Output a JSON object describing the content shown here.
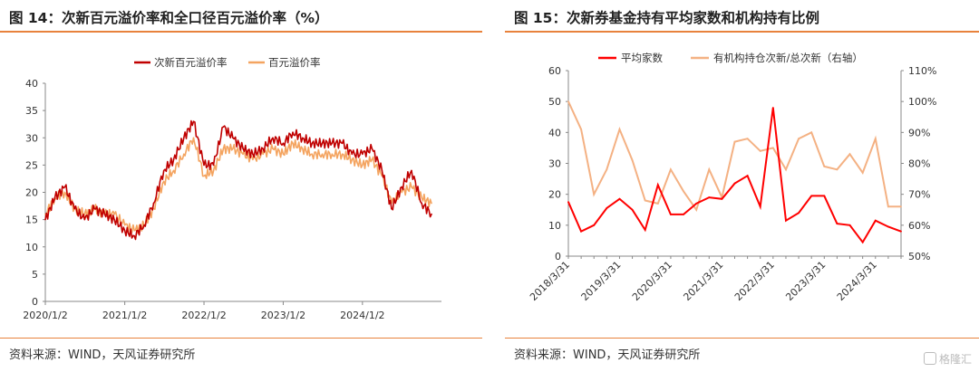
{
  "left": {
    "title": "图 14：次新百元溢价率和全口径百元溢价率（%）",
    "source": "资料来源：WIND，天风证券研究所"
  },
  "right": {
    "title": "图 15：次新券基金持有平均家数和机构持有比例",
    "source": "资料来源：WIND，天风证券研究所"
  },
  "watermark": "格隆汇",
  "chart_data": [
    {
      "type": "line",
      "x_tick_labels": [
        "2020/1/2",
        "2021/1/2",
        "2022/1/2",
        "2023/1/2",
        "2024/1/2"
      ],
      "ylim": [
        0,
        40
      ],
      "y_ticks": [
        0,
        5,
        10,
        15,
        20,
        25,
        30,
        35,
        40
      ],
      "legend_position": "top-center",
      "grid": false,
      "colors": {
        "次新百元溢价率": "#c00000",
        "百元溢价率": "#f4a460"
      },
      "series": [
        {
          "name": "次新百元溢价率",
          "x": [
            "2020/1/2",
            "2020/2/15",
            "2020/4/1",
            "2020/5/15",
            "2020/7/1",
            "2020/8/15",
            "2020/10/1",
            "2020/11/15",
            "2021/1/2",
            "2021/2/15",
            "2021/4/1",
            "2021/5/15",
            "2021/7/1",
            "2021/8/15",
            "2021/10/1",
            "2021/11/15",
            "2022/1/2",
            "2022/2/15",
            "2022/4/1",
            "2022/5/15",
            "2022/7/1",
            "2022/8/15",
            "2022/10/1",
            "2022/11/15",
            "2023/1/2",
            "2023/2/15",
            "2023/4/1",
            "2023/5/15",
            "2023/7/1",
            "2023/8/15",
            "2023/10/1",
            "2023/11/15",
            "2024/1/2",
            "2024/2/15",
            "2024/4/1",
            "2024/5/15",
            "2024/7/1",
            "2024/8/15",
            "2024/10/1",
            "2024/11/15"
          ],
          "values": [
            15,
            19,
            21,
            17,
            15,
            17,
            16,
            15,
            13,
            12,
            14,
            18,
            24,
            26,
            30,
            33,
            25,
            25,
            32,
            30,
            28,
            27,
            28,
            30,
            29,
            31,
            30,
            29,
            29,
            29,
            29,
            27,
            27,
            28,
            24,
            17,
            21,
            24,
            18,
            16
          ]
        },
        {
          "name": "百元溢价率",
          "x": [
            "2020/1/2",
            "2020/2/15",
            "2020/4/1",
            "2020/5/15",
            "2020/7/1",
            "2020/8/15",
            "2020/10/1",
            "2020/11/15",
            "2021/1/2",
            "2021/2/15",
            "2021/4/1",
            "2021/5/15",
            "2021/7/1",
            "2021/8/15",
            "2021/10/1",
            "2021/11/15",
            "2022/1/2",
            "2022/2/15",
            "2022/4/1",
            "2022/5/15",
            "2022/7/1",
            "2022/8/15",
            "2022/10/1",
            "2022/11/15",
            "2023/1/2",
            "2023/2/15",
            "2023/4/1",
            "2023/5/15",
            "2023/7/1",
            "2023/8/15",
            "2023/10/1",
            "2023/11/15",
            "2024/1/2",
            "2024/2/15",
            "2024/4/1",
            "2024/5/15",
            "2024/7/1",
            "2024/8/15",
            "2024/10/1",
            "2024/11/15"
          ],
          "values": [
            16,
            19,
            20,
            17,
            16,
            17,
            16,
            16,
            14,
            13,
            14,
            17,
            22,
            24,
            27,
            30,
            23,
            24,
            28,
            28,
            27,
            26,
            27,
            28,
            27,
            29,
            28,
            27,
            27,
            27,
            27,
            26,
            25,
            26,
            23,
            18,
            20,
            21,
            19,
            18
          ]
        }
      ]
    },
    {
      "type": "line",
      "categories": [
        "2018/3/31",
        "2018/6/30",
        "2018/9/30",
        "2018/12/31",
        "2019/3/31",
        "2019/6/30",
        "2019/9/30",
        "2019/12/31",
        "2020/3/31",
        "2020/6/30",
        "2020/9/30",
        "2020/12/31",
        "2021/3/31",
        "2021/6/30",
        "2021/9/30",
        "2021/12/31",
        "2022/3/31",
        "2022/6/30",
        "2022/9/30",
        "2022/12/31",
        "2023/3/31",
        "2023/6/30",
        "2023/9/30",
        "2023/12/31",
        "2024/3/31",
        "2024/6/30",
        "2024/9/30"
      ],
      "x_tick_labels": [
        "2018/3/31",
        "2019/3/31",
        "2020/3/31",
        "2021/3/31",
        "2022/3/31",
        "2023/3/31",
        "2024/3/31"
      ],
      "ylim": [
        0,
        60
      ],
      "y_ticks": [
        0,
        10,
        20,
        30,
        40,
        50,
        60
      ],
      "y2lim": [
        0.5,
        1.1
      ],
      "y2_ticks": [
        "50%",
        "60%",
        "70%",
        "80%",
        "90%",
        "100%",
        "110%"
      ],
      "legend_position": "top",
      "grid": false,
      "colors": {
        "平均家数": "#ff0000",
        "有机构持仓次新/总次新（右轴）": "#f4b183"
      },
      "series": [
        {
          "name": "平均家数",
          "axis": "left",
          "values": [
            17.5,
            8,
            10,
            15.5,
            18.5,
            15,
            8.5,
            23,
            13.5,
            13.5,
            17,
            19,
            18.5,
            23.5,
            26,
            16,
            48,
            11.5,
            14,
            19.5,
            19.5,
            10.5,
            10,
            4.5,
            11.5,
            9.5,
            8
          ]
        },
        {
          "name": "有机构持仓次新/总次新（右轴）",
          "axis": "right",
          "values": [
            1.0,
            0.91,
            0.7,
            0.78,
            0.91,
            0.81,
            0.68,
            0.67,
            0.78,
            0.71,
            0.65,
            0.78,
            0.69,
            0.87,
            0.88,
            0.84,
            0.85,
            0.78,
            0.88,
            0.9,
            0.79,
            0.78,
            0.83,
            0.77,
            0.88,
            0.66,
            0.66
          ]
        }
      ]
    }
  ]
}
